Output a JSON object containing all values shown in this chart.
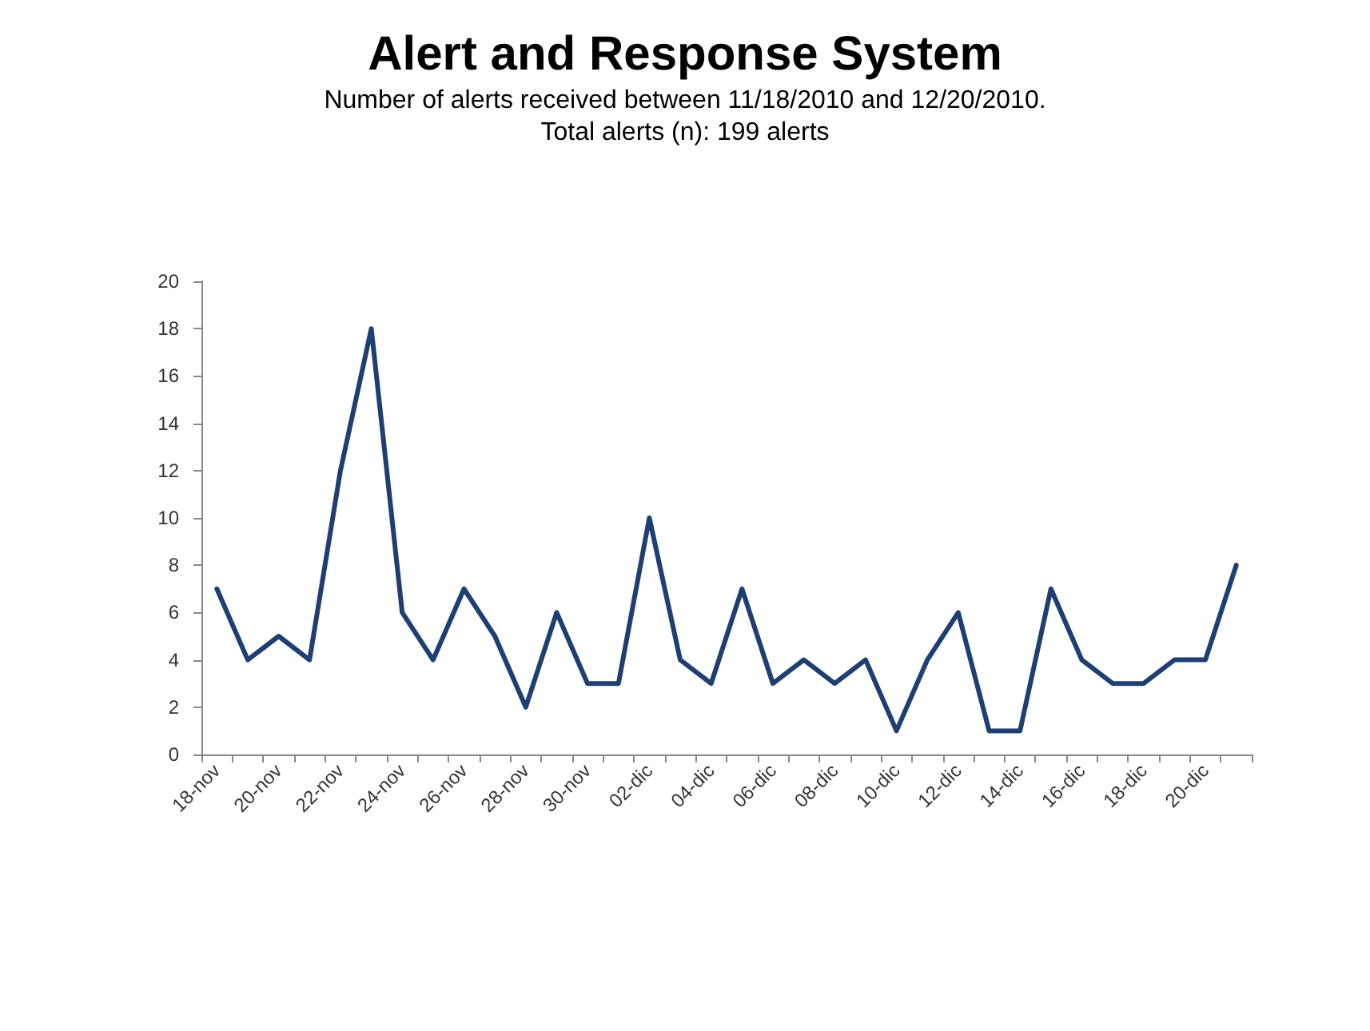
{
  "chart_data": {
    "type": "line",
    "title": "Alert and Response System",
    "subtitle": "Number of alerts received between 11/18/2010 and 12/20/2010.\nTotal alerts (n): 199 alerts",
    "categories": [
      "18-nov",
      null,
      "20-nov",
      null,
      "22-nov",
      null,
      "24-nov",
      null,
      "26-nov",
      null,
      "28-nov",
      null,
      "30-nov",
      null,
      "02-dic",
      null,
      "04-dic",
      null,
      "06-dic",
      null,
      "08-dic",
      null,
      "10-dic",
      null,
      "12-dic",
      null,
      "14-dic",
      null,
      "16-dic",
      null,
      "18-dic",
      null,
      "20-dic",
      null
    ],
    "series": [
      {
        "color": "#1f3f73",
        "values": [
          7,
          4,
          5,
          4,
          12,
          18,
          6,
          4,
          7,
          5,
          2,
          6,
          3,
          3,
          10,
          4,
          3,
          7,
          3,
          4,
          3,
          4,
          1,
          4,
          6,
          1,
          1,
          7,
          4,
          3,
          3,
          4,
          4,
          8
        ]
      }
    ],
    "ylim": [
      0,
      20
    ],
    "yticks": [
      0,
      2,
      4,
      6,
      8,
      10,
      12,
      14,
      16,
      18,
      20
    ],
    "marker": "none",
    "line_style": "solid"
  }
}
